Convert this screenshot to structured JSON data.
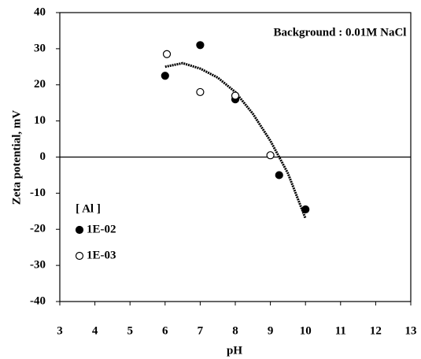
{
  "chart_data": {
    "type": "scatter",
    "annotation": "Background : 0.01M NaCl",
    "xlabel": "pH",
    "ylabel": "Zeta potential, mV",
    "xlim": [
      3,
      13
    ],
    "xticks": [
      3,
      4,
      5,
      6,
      7,
      8,
      9,
      10,
      11,
      12,
      13
    ],
    "ylim": [
      -40,
      40
    ],
    "yticks": [
      -40,
      -30,
      -20,
      -10,
      0,
      10,
      20,
      30,
      40
    ],
    "zero_line": true,
    "legend_title": "[ Al ]",
    "series": [
      {
        "name": "1E-02",
        "color": "#000000",
        "marker": "filled",
        "x": [
          6,
          7,
          8,
          9.25,
          10
        ],
        "values": [
          22.5,
          31,
          16,
          -5,
          -14.5
        ]
      },
      {
        "name": "1E-03",
        "color": "#000000",
        "marker": "open",
        "x": [
          6.05,
          7,
          8,
          9
        ],
        "values": [
          28.5,
          18,
          17,
          0.5
        ]
      }
    ],
    "curve": {
      "color": "#000000",
      "x": [
        6,
        6.5,
        7,
        7.5,
        8,
        8.5,
        9,
        9.5,
        10
      ],
      "values": [
        25,
        26,
        24.5,
        22,
        18,
        12,
        4.5,
        -4.5,
        -17
      ]
    }
  }
}
